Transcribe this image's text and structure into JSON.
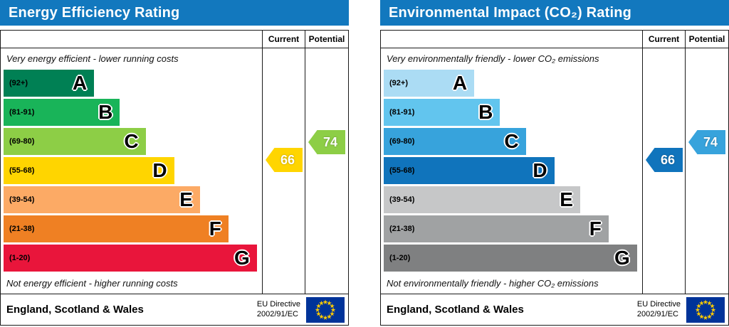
{
  "charts": [
    {
      "title": "Energy Efficiency Rating",
      "title_bg": "#1278be",
      "columns": {
        "current": "Current",
        "potential": "Potential"
      },
      "top_note": "Very energy efficient - lower running costs",
      "bottom_note": "Not energy efficient - higher running costs",
      "bands": [
        {
          "range": "(92+)",
          "letter": "A",
          "min": 92,
          "max": 100,
          "color": "#008054",
          "width_pct": 35
        },
        {
          "range": "(81-91)",
          "letter": "B",
          "min": 81,
          "max": 91,
          "color": "#19b459",
          "width_pct": 45
        },
        {
          "range": "(69-80)",
          "letter": "C",
          "min": 69,
          "max": 80,
          "color": "#8dce46",
          "width_pct": 55
        },
        {
          "range": "(55-68)",
          "letter": "D",
          "min": 55,
          "max": 68,
          "color": "#ffd500",
          "width_pct": 66
        },
        {
          "range": "(39-54)",
          "letter": "E",
          "min": 39,
          "max": 54,
          "color": "#fcaa65",
          "width_pct": 76
        },
        {
          "range": "(21-38)",
          "letter": "F",
          "min": 21,
          "max": 38,
          "color": "#ef8023",
          "width_pct": 87
        },
        {
          "range": "(1-20)",
          "letter": "G",
          "min": 1,
          "max": 20,
          "color": "#e9153b",
          "width_pct": 98
        }
      ],
      "current_value": 66,
      "potential_value": 74,
      "footer": {
        "region": "England, Scotland & Wales",
        "directive_line1": "EU Directive",
        "directive_line2": "2002/91/EC"
      }
    },
    {
      "title": "Environmental Impact (CO₂) Rating",
      "title_bg": "#1278be",
      "columns": {
        "current": "Current",
        "potential": "Potential"
      },
      "top_note": "Very environmentally friendly - lower CO₂ emissions",
      "bottom_note": "Not environmentally friendly - higher CO₂ emissions",
      "bands": [
        {
          "range": "(92+)",
          "letter": "A",
          "min": 92,
          "max": 100,
          "color": "#abdcf4",
          "width_pct": 35
        },
        {
          "range": "(81-91)",
          "letter": "B",
          "min": 81,
          "max": 91,
          "color": "#62c5ee",
          "width_pct": 45
        },
        {
          "range": "(69-80)",
          "letter": "C",
          "min": 69,
          "max": 80,
          "color": "#37a3dc",
          "width_pct": 55
        },
        {
          "range": "(55-68)",
          "letter": "D",
          "min": 55,
          "max": 68,
          "color": "#1074bc",
          "width_pct": 66
        },
        {
          "range": "(39-54)",
          "letter": "E",
          "min": 39,
          "max": 54,
          "color": "#c6c7c8",
          "width_pct": 76
        },
        {
          "range": "(21-38)",
          "letter": "F",
          "min": 21,
          "max": 38,
          "color": "#a0a2a3",
          "width_pct": 87
        },
        {
          "range": "(1-20)",
          "letter": "G",
          "min": 1,
          "max": 20,
          "color": "#7f8081",
          "width_pct": 98
        }
      ],
      "current_value": 66,
      "potential_value": 74,
      "footer": {
        "region": "England, Scotland & Wales",
        "directive_line1": "EU Directive",
        "directive_line2": "2002/91/EC"
      }
    }
  ],
  "chart_data": [
    {
      "type": "bar",
      "title": "Energy Efficiency Rating",
      "categories": [
        "A (92+)",
        "B (81-91)",
        "C (69-80)",
        "D (55-68)",
        "E (39-54)",
        "F (21-38)",
        "G (1-20)"
      ],
      "series": [
        {
          "name": "Current",
          "values": [
            66
          ],
          "band": "D"
        },
        {
          "name": "Potential",
          "values": [
            74
          ],
          "band": "C"
        }
      ],
      "scale": [
        1,
        100
      ],
      "top_label": "Very energy efficient - lower running costs",
      "bottom_label": "Not energy efficient - higher running costs"
    },
    {
      "type": "bar",
      "title": "Environmental Impact (CO₂) Rating",
      "categories": [
        "A (92+)",
        "B (81-91)",
        "C (69-80)",
        "D (55-68)",
        "E (39-54)",
        "F (21-38)",
        "G (1-20)"
      ],
      "series": [
        {
          "name": "Current",
          "values": [
            66
          ],
          "band": "D"
        },
        {
          "name": "Potential",
          "values": [
            74
          ],
          "band": "C"
        }
      ],
      "scale": [
        1,
        100
      ],
      "top_label": "Very environmentally friendly - lower CO₂ emissions",
      "bottom_label": "Not environmentally friendly - higher CO₂ emissions"
    }
  ]
}
